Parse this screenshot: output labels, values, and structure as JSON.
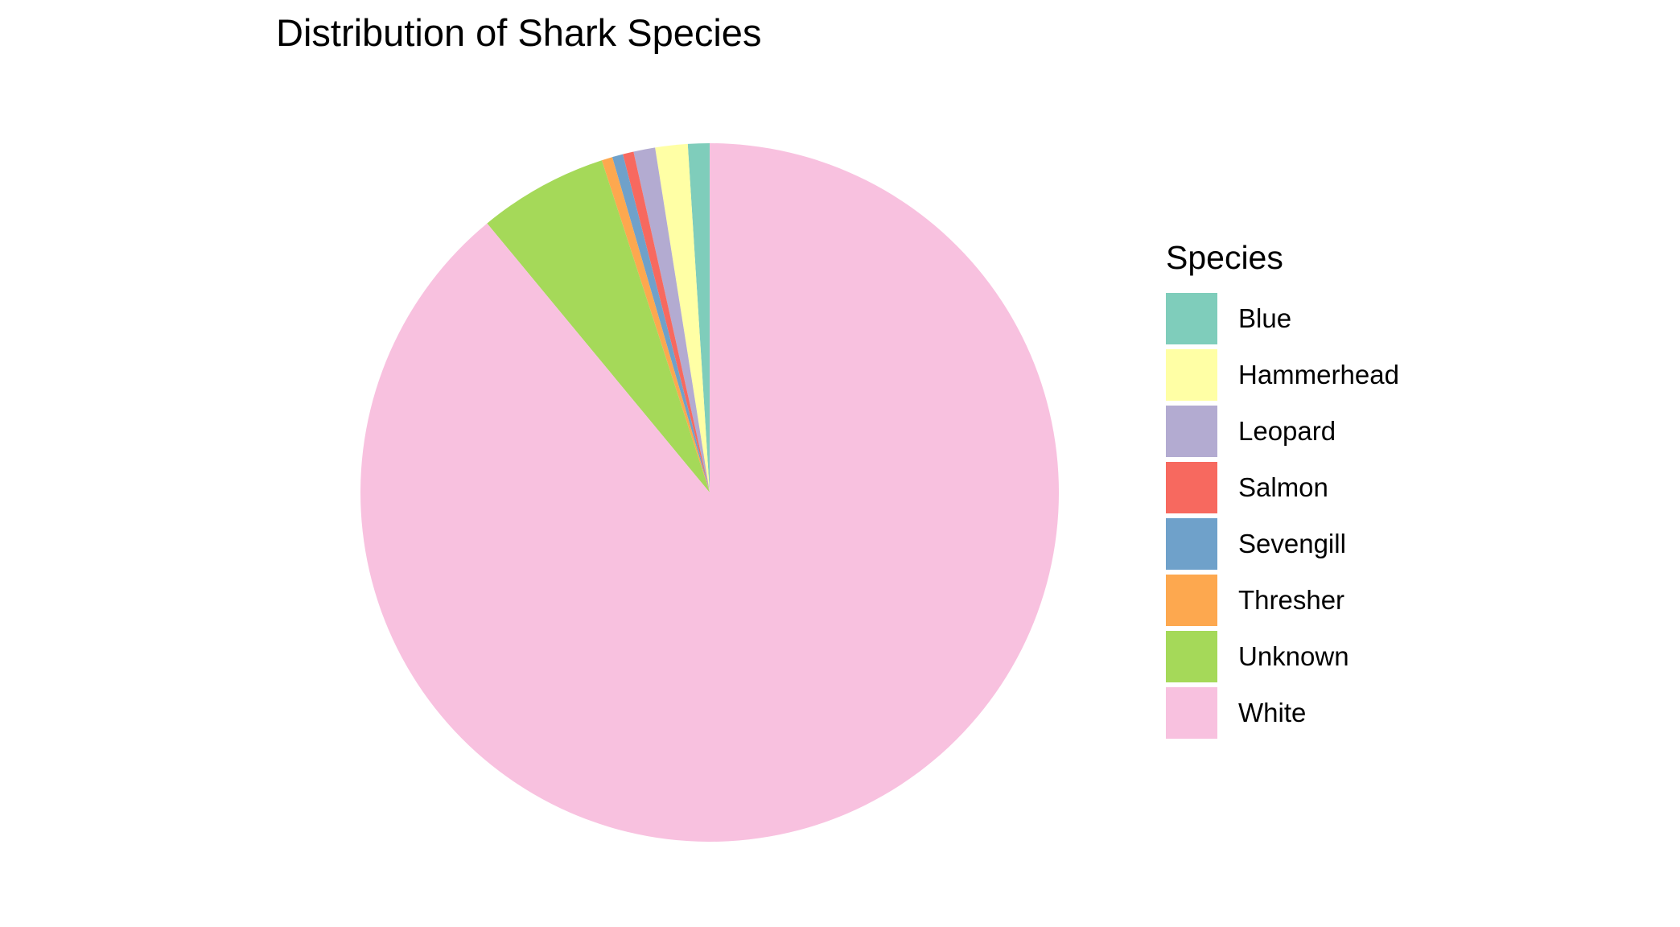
{
  "chart_data": {
    "type": "pie",
    "title": "Distribution of Shark Species",
    "legend": {
      "title": "Species",
      "placement": "right"
    },
    "slices": [
      {
        "label": "Blue",
        "value": 1.0,
        "color": "#7FCDBB"
      },
      {
        "label": "Hammerhead",
        "value": 1.5,
        "color": "#FFFFA5"
      },
      {
        "label": "Leopard",
        "value": 1.0,
        "color": "#B3ABD1"
      },
      {
        "label": "Salmon",
        "value": 0.5,
        "color": "#F7695F"
      },
      {
        "label": "Sevengill",
        "value": 0.5,
        "color": "#6FA1CA"
      },
      {
        "label": "Thresher",
        "value": 0.5,
        "color": "#FDA84F"
      },
      {
        "label": "Unknown",
        "value": 6.0,
        "color": "#A5D959"
      },
      {
        "label": "White",
        "value": 89.0,
        "color": "#F8C1DF"
      }
    ]
  }
}
